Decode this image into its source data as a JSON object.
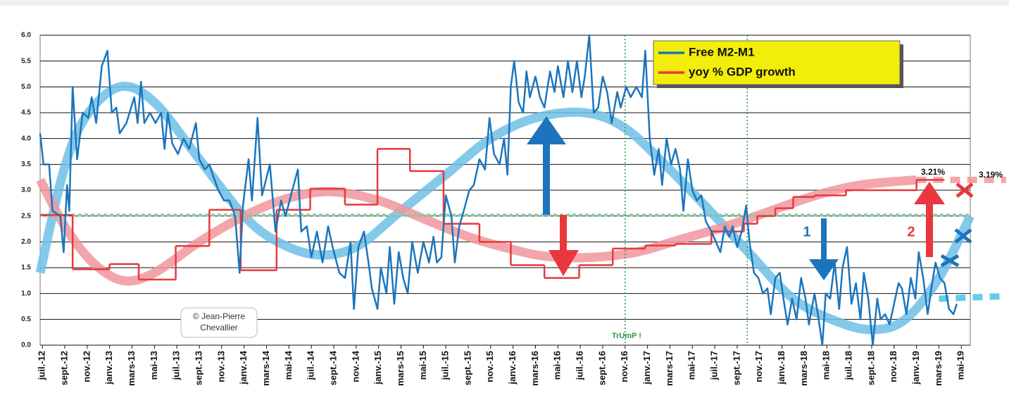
{
  "chart_data": {
    "type": "line",
    "xlim": [
      -0.2,
      82.8
    ],
    "ylim": [
      0,
      6
    ],
    "grid": true,
    "yticks": [
      {
        "value": 0,
        "label": "0.0"
      },
      0.5,
      {
        "value": 1,
        "label": "1.0"
      },
      1.5,
      {
        "value": 2,
        "label": "2.0"
      },
      2.5,
      {
        "value": 3,
        "label": "3.0"
      },
      3.5,
      {
        "value": 4,
        "label": "4.0"
      },
      4.5,
      {
        "value": 5,
        "label": "5.0"
      },
      5.5,
      {
        "value": 6,
        "label": "6.0"
      }
    ],
    "xticks": [
      {
        "value": 0,
        "label": "juil.-12"
      },
      {
        "value": 2,
        "label": "sept.-12"
      },
      {
        "value": 4,
        "label": "nov.-12"
      },
      {
        "value": 6,
        "label": "janv.-13"
      },
      {
        "value": 8,
        "label": "mars-13"
      },
      {
        "value": 10,
        "label": "mai-13"
      },
      {
        "value": 12,
        "label": "juil.-13"
      },
      {
        "value": 14,
        "label": "sept.-13"
      },
      {
        "value": 16,
        "label": "nov.-13"
      },
      {
        "value": 18,
        "label": "janv.-14"
      },
      {
        "value": 20,
        "label": "mars-14"
      },
      {
        "value": 22,
        "label": "mai-14"
      },
      {
        "value": 24,
        "label": "juil.-14"
      },
      {
        "value": 26,
        "label": "sept.-14"
      },
      {
        "value": 28,
        "label": "nov.-14"
      },
      {
        "value": 30,
        "label": "janv.-15"
      },
      {
        "value": 32,
        "label": "mars-15"
      },
      {
        "value": 34,
        "label": "mai-15"
      },
      {
        "value": 36,
        "label": "juil.-15"
      },
      {
        "value": 38,
        "label": "sept.-15"
      },
      {
        "value": 40,
        "label": "nov.-15"
      },
      {
        "value": 42,
        "label": "janv.-16"
      },
      {
        "value": 44,
        "label": "mars-16"
      },
      {
        "value": 46,
        "label": "mai-16"
      },
      {
        "value": 48,
        "label": "juil.-16"
      },
      {
        "value": 50,
        "label": "sept.-16"
      },
      {
        "value": 52,
        "label": "nov.-16"
      },
      {
        "value": 54,
        "label": "janv.-17"
      },
      {
        "value": 56,
        "label": "mars-17"
      },
      {
        "value": 58,
        "label": "mai-17"
      },
      {
        "value": 60,
        "label": "juil.-17"
      },
      {
        "value": 62,
        "label": "sept.-17"
      },
      {
        "value": 64,
        "label": "nov.-17"
      },
      {
        "value": 66,
        "label": "janv.-18"
      },
      {
        "value": 68,
        "label": "mars-18"
      },
      {
        "value": 70,
        "label": "mai-18"
      },
      {
        "value": 72,
        "label": "juil.-18"
      },
      {
        "value": 74,
        "label": "sept.-18"
      },
      {
        "value": 76,
        "label": "nov.-18"
      },
      {
        "value": 78,
        "label": "janv.-19"
      },
      {
        "value": 80,
        "label": "mars-19"
      },
      {
        "value": 82,
        "label": "mai-19"
      }
    ],
    "series": [
      {
        "name": "Free M2-M1",
        "color": "#1c75bc",
        "x": [
          -0.2,
          0.1,
          0.6,
          0.9,
          1.6,
          1.9,
          2.2,
          2.4,
          2.7,
          3.1,
          3.6,
          4.1,
          4.4,
          4.8,
          5.3,
          5.8,
          6.2,
          6.6,
          6.9,
          7.5,
          8.2,
          8.5,
          8.8,
          9.1,
          9.6,
          10.1,
          10.6,
          10.9,
          11.2,
          11.6,
          12.1,
          12.6,
          13.1,
          13.7,
          14.0,
          14.5,
          14.9,
          15.2,
          15.7,
          16.2,
          16.7,
          17.2,
          17.6,
          17.9,
          18.4,
          18.7,
          19.2,
          19.6,
          20.3,
          20.8,
          21.3,
          21.7,
          22.3,
          22.8,
          23.1,
          23.6,
          24.0,
          24.5,
          25.0,
          25.5,
          25.9,
          26.5,
          27.0,
          27.5,
          27.8,
          28.2,
          28.7,
          29.1,
          29.4,
          29.9,
          30.2,
          30.7,
          31.0,
          31.4,
          31.8,
          32.2,
          32.6,
          33.0,
          33.5,
          34.0,
          34.5,
          34.9,
          35.2,
          35.6,
          36.0,
          36.5,
          36.8,
          37.2,
          37.6,
          38.1,
          38.5,
          39.0,
          39.5,
          39.9,
          40.3,
          40.8,
          41.2,
          41.5,
          41.8,
          42.1,
          42.5,
          42.9,
          43.2,
          43.5,
          44.0,
          44.4,
          44.8,
          45.3,
          45.7,
          46.0,
          46.5,
          46.9,
          47.3,
          47.7,
          48.1,
          48.4,
          48.8,
          49.2,
          49.6,
          50.0,
          50.4,
          50.8,
          51.3,
          51.6,
          52.1,
          52.5,
          53.0,
          53.5,
          53.8,
          54.2,
          54.6,
          55.0,
          55.3,
          55.7,
          56.1,
          56.5,
          56.9,
          57.2,
          57.6,
          58.0,
          58.4,
          58.8,
          59.2,
          59.7,
          60.1,
          60.5,
          60.9,
          61.3,
          61.6,
          62.0,
          62.4,
          62.8,
          63.1,
          63.5,
          63.9,
          64.3,
          64.7,
          65.0,
          65.4,
          65.8,
          66.2,
          66.5,
          66.9,
          67.3,
          67.7,
          68.1,
          68.4,
          68.9,
          69.2,
          69.6,
          69.9,
          70.3,
          70.7,
          71.1,
          71.4,
          71.8,
          72.2,
          72.6,
          73.0,
          73.3,
          73.7,
          74.1,
          74.5,
          74.8,
          75.2,
          75.6,
          76.0,
          76.4,
          76.7,
          77.1,
          77.5,
          77.9,
          78.2,
          78.6,
          79.0,
          79.4,
          79.7,
          80.1,
          80.5,
          80.9,
          81.3,
          81.6
        ],
        "values": [
          4.1,
          3.5,
          3.5,
          2.6,
          2.5,
          1.8,
          3.1,
          2.6,
          5.0,
          3.6,
          4.5,
          4.4,
          4.8,
          4.3,
          5.4,
          5.7,
          4.5,
          4.6,
          4.1,
          4.3,
          4.8,
          4.3,
          5.1,
          4.3,
          4.5,
          4.3,
          4.5,
          3.8,
          4.5,
          3.9,
          3.7,
          4.0,
          3.8,
          4.3,
          3.6,
          3.4,
          3.5,
          3.3,
          3.0,
          2.8,
          2.8,
          2.5,
          1.4,
          2.7,
          3.6,
          2.8,
          4.4,
          2.9,
          3.5,
          2.2,
          2.8,
          2.5,
          3.0,
          3.4,
          2.2,
          2.3,
          1.7,
          2.2,
          1.6,
          2.3,
          1.9,
          1.4,
          1.3,
          2.0,
          0.7,
          1.9,
          2.2,
          1.6,
          1.1,
          0.7,
          1.5,
          1.0,
          1.9,
          0.8,
          1.8,
          1.3,
          1.0,
          2.0,
          1.4,
          2.0,
          1.6,
          2.1,
          1.6,
          1.7,
          2.9,
          2.5,
          1.6,
          2.3,
          2.6,
          3.0,
          3.1,
          3.6,
          3.4,
          4.4,
          3.7,
          3.5,
          4.0,
          3.3,
          5.0,
          5.5,
          4.7,
          4.5,
          5.3,
          4.8,
          5.2,
          4.8,
          4.6,
          5.3,
          4.9,
          5.4,
          4.8,
          5.5,
          4.9,
          5.5,
          4.8,
          5.2,
          6.0,
          4.5,
          4.6,
          5.2,
          4.9,
          4.3,
          4.9,
          4.6,
          5.0,
          4.8,
          5.0,
          4.8,
          5.7,
          4.0,
          3.3,
          3.8,
          3.1,
          4.0,
          3.5,
          3.8,
          3.4,
          2.6,
          3.6,
          3.0,
          2.8,
          2.9,
          2.4,
          2.2,
          2.0,
          1.8,
          2.3,
          2.1,
          2.3,
          1.9,
          2.2,
          2.7,
          2.0,
          1.4,
          1.3,
          1.0,
          1.1,
          0.6,
          1.3,
          1.4,
          0.8,
          0.4,
          0.9,
          0.5,
          1.3,
          0.9,
          0.4,
          1.0,
          0.6,
          0.0,
          1.0,
          0.9,
          1.6,
          0.7,
          1.5,
          1.9,
          0.8,
          1.2,
          0.5,
          1.4,
          0.9,
          0.0,
          0.9,
          0.5,
          0.6,
          0.4,
          0.8,
          1.2,
          1.1,
          0.6,
          1.3,
          0.9,
          1.8,
          1.3,
          0.6,
          1.2,
          1.6,
          1.3,
          1.2,
          0.7,
          0.6,
          0.8
        ]
      },
      {
        "name": "yoy % GDP growth",
        "color": "#e8383d",
        "step": true,
        "x_end": 80.5,
        "x": [
          -0.2,
          2.7,
          6.0,
          8.6,
          11.9,
          14.9,
          17.7,
          20.9,
          23.9,
          27.0,
          29.9,
          32.8,
          35.8,
          39.0,
          41.8,
          44.8,
          47.9,
          50.9,
          53.8,
          56.5,
          59.7,
          62.6,
          63.8,
          65.4,
          67.0,
          68.9,
          71.7,
          78.0
        ],
        "values": [
          2.52,
          1.47,
          1.57,
          1.27,
          1.92,
          2.62,
          1.45,
          2.62,
          3.03,
          2.72,
          3.8,
          3.37,
          2.35,
          2.0,
          1.55,
          1.3,
          1.55,
          1.87,
          1.93,
          1.96,
          2.2,
          2.35,
          2.5,
          2.65,
          2.87,
          2.9,
          3.0,
          3.2
        ]
      }
    ],
    "trends": [
      {
        "color": "#6fbfe6",
        "x": [
          -0.2,
          1.8,
          3.8,
          6.9,
          10,
          14,
          18,
          21,
          24.5,
          28,
          32,
          36,
          40,
          44,
          48.4,
          52,
          56,
          60,
          63,
          67,
          71,
          74.2,
          77,
          80,
          82.8
        ],
        "values": [
          1.4,
          3.3,
          4.4,
          5.0,
          4.7,
          3.6,
          2.5,
          2.0,
          1.75,
          1.9,
          2.6,
          3.3,
          4.0,
          4.4,
          4.5,
          4.2,
          3.4,
          2.5,
          1.8,
          0.9,
          0.45,
          0.3,
          0.5,
          1.3,
          2.5
        ]
      },
      {
        "color": "#f0979c",
        "x": [
          -0.2,
          2,
          4.5,
          7.2,
          10,
          14,
          18,
          22,
          25.8,
          30,
          34,
          38,
          42,
          45,
          49,
          53,
          57,
          61,
          65,
          69,
          73,
          78
        ],
        "values": [
          3.2,
          2.3,
          1.6,
          1.25,
          1.4,
          2.0,
          2.5,
          2.85,
          2.97,
          2.8,
          2.45,
          2.1,
          1.85,
          1.72,
          1.7,
          1.8,
          2.05,
          2.3,
          2.6,
          2.9,
          3.1,
          3.2
        ]
      },
      {
        "color": "#f0979c",
        "dashed": true,
        "x": [
          78,
          86
        ],
        "values": [
          3.2,
          3.2
        ]
      },
      {
        "color": "#4cc0e8",
        "dashed": true,
        "x": [
          80,
          86
        ],
        "values": [
          0.9,
          0.95
        ]
      }
    ],
    "reference_line": {
      "value": 2.52,
      "color": "#86cfa8"
    },
    "vlines": [
      {
        "x": 52,
        "color": "#2a9a4a"
      },
      {
        "x": 62.9,
        "color": "#2a9a4a"
      }
    ],
    "annotations": {
      "trump": "TrUmP !",
      "gdp_now": "3.21%",
      "gdp_next": "3.19%",
      "one": "1",
      "two": "2",
      "copyright_1": "© Jean-Pierre",
      "copyright_2": "Chevallier"
    }
  }
}
